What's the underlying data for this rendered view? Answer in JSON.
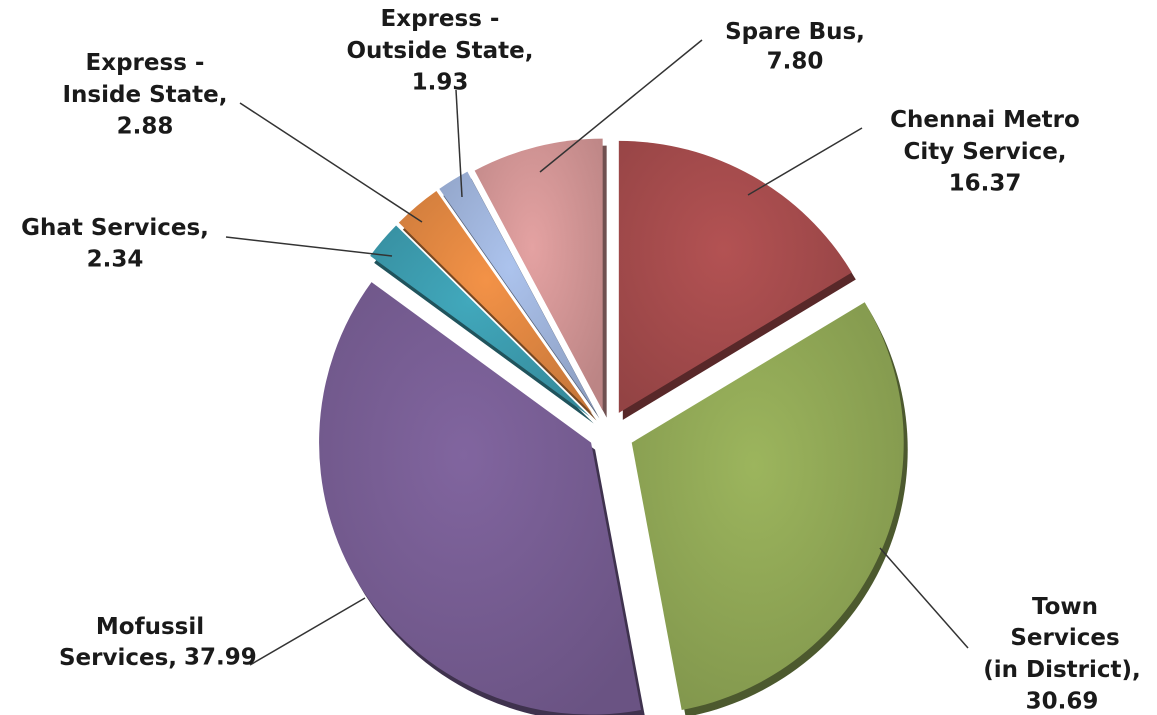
{
  "chart_data": {
    "type": "pie",
    "categories": [
      "Chennai Metro City Service,",
      "Town Services (in District),",
      "Mofussil Services,",
      "Ghat Services,",
      "Express - Inside State,",
      "Express - Outside State,",
      "Spare Bus,"
    ],
    "values": [
      16.37,
      30.69,
      37.99,
      2.34,
      2.88,
      1.93,
      7.8
    ],
    "value_labels": [
      "16.37",
      "30.69",
      "37.99",
      "2.34",
      "2.88",
      "1.93",
      "7.80"
    ],
    "colors": [
      "#a0494a",
      "#8ba253",
      "#735a8e",
      "#3a96a8",
      "#d9823f",
      "#9aaed4",
      "#cc9191"
    ]
  }
}
